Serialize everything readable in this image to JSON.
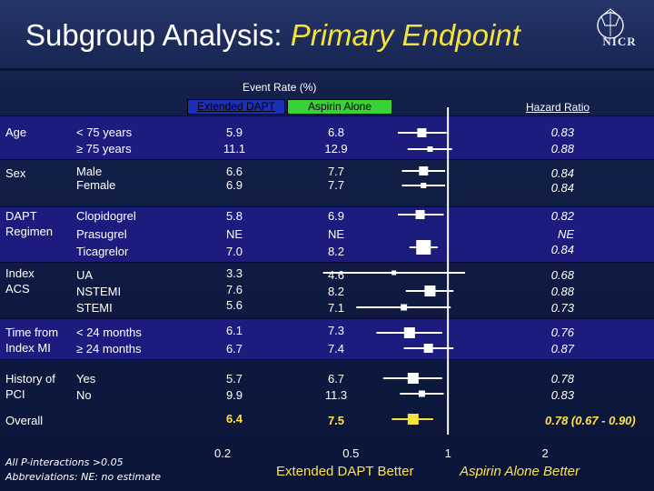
{
  "title": {
    "main": "Subgroup Analysis:",
    "highlight": "Primary Endpoint"
  },
  "logo": {
    "text": "NICR"
  },
  "header": {
    "event_rate": "Event Rate (%)",
    "legend_dapt": "Extended DAPT",
    "legend_aspirin": "Aspirin Alone",
    "hazard_ratio": "Hazard Ratio"
  },
  "colors": {
    "band": "#1c1c7e",
    "marker": "#ffffff",
    "overall_marker": "#f4e13a",
    "accent": "#f4e13a",
    "legend_dapt": "#1c2fb8",
    "legend_aspirin": "#3ad038"
  },
  "chart_data": {
    "type": "forest",
    "x_scale": "log",
    "xlim": [
      0.2,
      2
    ],
    "x_ticks": [
      "0.2",
      "0.5",
      "1",
      "2"
    ],
    "x_tick_values": [
      0.2,
      0.5,
      1,
      2
    ],
    "reference_line": 1,
    "xlabel_left": "Extended DAPT Better",
    "xlabel_right": "Aspirin Alone Better",
    "groups": [
      {
        "name": "Age",
        "rows": [
          {
            "label": "< 75 years",
            "dapt": "5.9",
            "aspirin": "6.8",
            "hr": "0.83",
            "value": 0.83,
            "lo": 0.7,
            "hi": 0.99
          },
          {
            "label": "≥ 75 years",
            "dapt": "11.1",
            "aspirin": "12.9",
            "hr": "0.88",
            "value": 0.88,
            "lo": 0.75,
            "hi": 1.03
          }
        ]
      },
      {
        "name": "Sex",
        "rows": [
          {
            "label": "Male",
            "dapt": "6.6",
            "aspirin": "7.7",
            "hr": "0.84",
            "value": 0.84,
            "lo": 0.72,
            "hi": 0.98
          },
          {
            "label": "Female",
            "dapt": "6.9",
            "aspirin": "7.7",
            "hr": "0.84",
            "value": 0.84,
            "lo": 0.72,
            "hi": 0.98
          }
        ]
      },
      {
        "name": "DAPT Regimen",
        "rows": [
          {
            "label": "Clopidogrel",
            "dapt": "5.8",
            "aspirin": "6.9",
            "hr": "0.82",
            "value": 0.82,
            "lo": 0.7,
            "hi": 0.97
          },
          {
            "label": "Prasugrel",
            "dapt": "NE",
            "aspirin": "NE",
            "hr": "NE",
            "value": null,
            "lo": null,
            "hi": null
          },
          {
            "label": "Ticagrelor",
            "dapt": "7.0",
            "aspirin": "8.2",
            "hr": "0.84",
            "value": 0.84,
            "lo": 0.76,
            "hi": 0.93
          }
        ]
      },
      {
        "name": "Index ACS",
        "rows": [
          {
            "label": "UA",
            "dapt": "3.3",
            "aspirin": "4.6",
            "hr": "0.68",
            "value": 0.68,
            "lo": 0.41,
            "hi": 1.13
          },
          {
            "label": "NSTEMI",
            "dapt": "7.6",
            "aspirin": "8.2",
            "hr": "0.88",
            "value": 0.88,
            "lo": 0.74,
            "hi": 1.04
          },
          {
            "label": "STEMI",
            "dapt": "5.6",
            "aspirin": "7.1",
            "hr": "0.73",
            "value": 0.73,
            "lo": 0.52,
            "hi": 1.02
          }
        ]
      },
      {
        "name": "Time from Index MI",
        "rows": [
          {
            "label": "< 24 months",
            "dapt": "6.1",
            "aspirin": "7.3",
            "hr": "0.76",
            "value": 0.76,
            "lo": 0.6,
            "hi": 0.96
          },
          {
            "label": "≥ 24 months",
            "dapt": "6.7",
            "aspirin": "7.4",
            "hr": "0.87",
            "value": 0.87,
            "lo": 0.73,
            "hi": 1.04
          }
        ]
      },
      {
        "name": "History of PCI",
        "rows": [
          {
            "label": "Yes",
            "dapt": "5.7",
            "aspirin": "6.7",
            "hr": "0.78",
            "value": 0.78,
            "lo": 0.63,
            "hi": 0.96
          },
          {
            "label": "No",
            "dapt": "9.9",
            "aspirin": "11.3",
            "hr": "0.83",
            "value": 0.83,
            "lo": 0.71,
            "hi": 0.97
          }
        ]
      }
    ],
    "overall": {
      "name": "Overall",
      "dapt": "6.4",
      "aspirin": "7.5",
      "hr": "0.78 (0.67 - 0.90)",
      "value": 0.78,
      "lo": 0.67,
      "hi": 0.9
    }
  },
  "footnote": {
    "line1": "All P-interactions >0.05",
    "line2": "Abbreviations: NE: no estimate"
  }
}
